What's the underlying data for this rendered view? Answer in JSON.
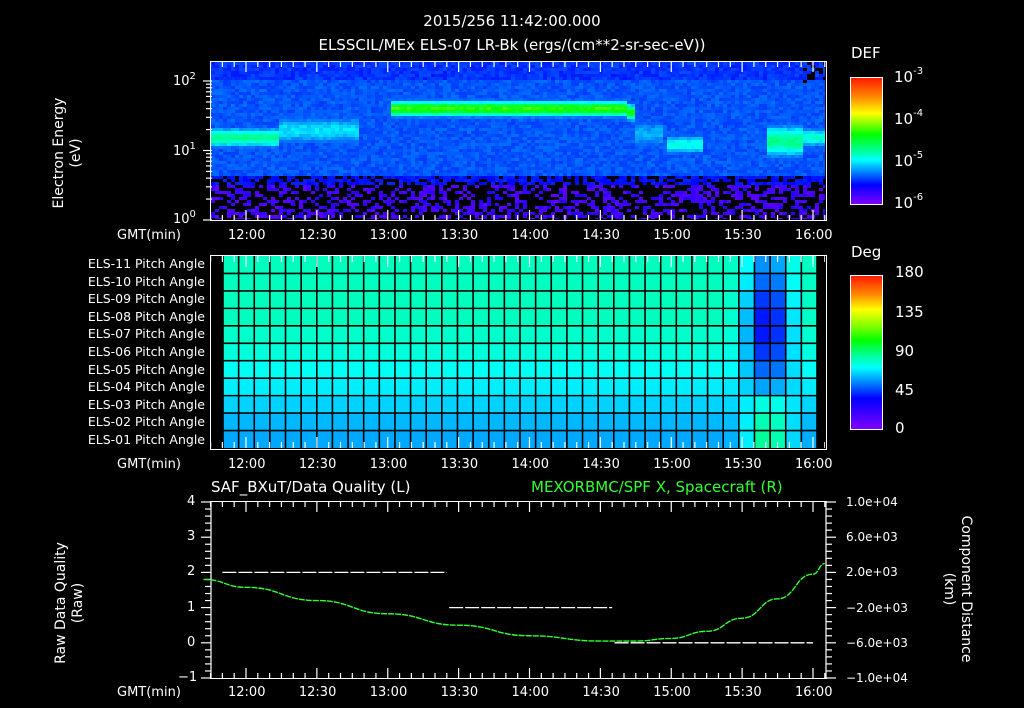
{
  "header": {
    "timestamp": "2015/256 11:42:00.000",
    "subtitle": "ELSSCIL/MEx ELS-07 LR-Bk  (ergs/(cm**2-sr-sec-eV))"
  },
  "panel1": {
    "ylabel_line1": "Electron Energy",
    "ylabel_line2": "(eV)",
    "yticks": [
      {
        "base": "10",
        "exp": "2"
      },
      {
        "base": "10",
        "exp": "1"
      },
      {
        "base": "10",
        "exp": "0"
      }
    ],
    "xlabel": "GMT(min)",
    "colorbar": {
      "title": "DEF",
      "ticks": [
        {
          "base": "10",
          "exp": "-3"
        },
        {
          "base": "10",
          "exp": "-4"
        },
        {
          "base": "10",
          "exp": "-5"
        },
        {
          "base": "10",
          "exp": "-6"
        }
      ]
    }
  },
  "panel2": {
    "row_labels": [
      "ELS-11 Pitch Angle",
      "ELS-10 Pitch Angle",
      "ELS-09 Pitch Angle",
      "ELS-08 Pitch Angle",
      "ELS-07 Pitch Angle",
      "ELS-06 Pitch Angle",
      "ELS-05 Pitch Angle",
      "ELS-04 Pitch Angle",
      "ELS-03 Pitch Angle",
      "ELS-02 Pitch Angle",
      "ELS-01 Pitch Angle"
    ],
    "xlabel": "GMT(min)",
    "colorbar": {
      "title": "Deg",
      "ticks": [
        "180",
        "135",
        "90",
        "45",
        "0"
      ]
    }
  },
  "panel3": {
    "title_left": "SAF_BXuT/Data Quality (L)",
    "title_right": "MEXORBMC/SPF X, Spacecraft (R)",
    "title_right_color": "#33ff33",
    "ylabel_left_line1": "Raw Data Quality",
    "ylabel_left_line2": "(Raw)",
    "yticks_left": [
      "4",
      "3",
      "2",
      "1",
      "0",
      "−1"
    ],
    "ylabel_right_line1": "Component Distance",
    "ylabel_right_line2": "(km)",
    "yticks_right": [
      "1.0e+04",
      "6.0e+03",
      "2.0e+03",
      "−2.0e+03",
      "−6.0e+03",
      "−1.0e+04"
    ],
    "xlabel": "GMT(min)"
  },
  "xticks": [
    "12:00",
    "12:30",
    "13:00",
    "13:30",
    "14:00",
    "14:30",
    "15:00",
    "15:30",
    "16:00"
  ],
  "chart_data": [
    {
      "type": "heatmap",
      "title": "ELSSCIL/MEx ELS-07 LR-Bk (ergs/(cm**2-sr-sec-eV))",
      "xlabel": "GMT(min)",
      "ylabel": "Electron Energy (eV)",
      "yscale": "log",
      "ylim": [
        1,
        150
      ],
      "xlim": [
        "11:42",
        "16:05"
      ],
      "x_ticks": [
        "12:00",
        "12:30",
        "13:00",
        "13:30",
        "14:00",
        "14:30",
        "15:00",
        "15:30",
        "16:00"
      ],
      "y_ticks": [
        "10^0",
        "10^1",
        "10^2"
      ],
      "colorbar": {
        "label": "DEF",
        "scale": "log",
        "range": [
          1e-06,
          0.001
        ],
        "ticks": [
          "10^-6",
          "10^-5",
          "10^-4",
          "10^-3"
        ]
      },
      "features": [
        {
          "time": "11:42-12:10",
          "energy_eV": "10-25",
          "level": "~3e-5"
        },
        {
          "time": "12:10-12:45",
          "energy_eV": "8-40",
          "level": "~1.5e-5 (patchy)"
        },
        {
          "time": "12:58-14:40",
          "energy_eV": "25-60",
          "level": "~1e-4 (peak band)"
        },
        {
          "time": "14:50-15:10",
          "energy_eV": "7-20",
          "level": "~2e-5"
        },
        {
          "time": "15:40-15:55",
          "energy_eV": "6-30",
          "level": "~3e-5"
        },
        {
          "time": "all",
          "energy_eV": "<3",
          "level": "sparse/below 1e-6"
        }
      ]
    },
    {
      "type": "heatmap",
      "title": "ELS Pitch Angle",
      "xlabel": "GMT(min)",
      "categories": [
        "ELS-11",
        "ELS-10",
        "ELS-09",
        "ELS-08",
        "ELS-07",
        "ELS-06",
        "ELS-05",
        "ELS-04",
        "ELS-03",
        "ELS-02",
        "ELS-01"
      ],
      "colorbar": {
        "label": "Deg",
        "range": [
          0,
          180
        ],
        "ticks": [
          0,
          45,
          90,
          135,
          180
        ]
      },
      "typical_values_deg": [
        100,
        100,
        100,
        100,
        98,
        95,
        90,
        85,
        80,
        75,
        72
      ],
      "values_at_15:35_deg": [
        65,
        55,
        40,
        30,
        30,
        40,
        55,
        70,
        95,
        105,
        110
      ]
    },
    {
      "type": "line",
      "title": "SAF_BXuT/Data Quality (L) & MEXORBMC/SPF X, Spacecraft (R)",
      "xlabel": "GMT(min)",
      "x_ticks": [
        "12:00",
        "12:30",
        "13:00",
        "13:30",
        "14:00",
        "14:30",
        "15:00",
        "15:30",
        "16:00"
      ],
      "series": [
        {
          "name": "Data Quality (L)",
          "axis": "left",
          "ylim": [
            -1,
            4
          ],
          "segments": [
            {
              "x": [
                "11:50",
                "13:25"
              ],
              "y": 2
            },
            {
              "x": [
                "13:26",
                "14:35"
              ],
              "y": 1
            },
            {
              "x": [
                "14:36",
                "16:00"
              ],
              "y": 0
            }
          ]
        },
        {
          "name": "SPF X, Spacecraft (R)",
          "axis": "right",
          "ylim": [
            -10000,
            10000
          ],
          "color": "#33ff33",
          "x": [
            "11:42",
            "12:00",
            "12:30",
            "13:00",
            "13:30",
            "14:00",
            "14:30",
            "14:45",
            "15:00",
            "15:15",
            "15:30",
            "15:45",
            "16:00",
            "16:05"
          ],
          "y": [
            1200,
            300,
            -1200,
            -2700,
            -4000,
            -5200,
            -5800,
            -5800,
            -5500,
            -4700,
            -3200,
            -1000,
            1800,
            3000
          ]
        }
      ]
    }
  ]
}
